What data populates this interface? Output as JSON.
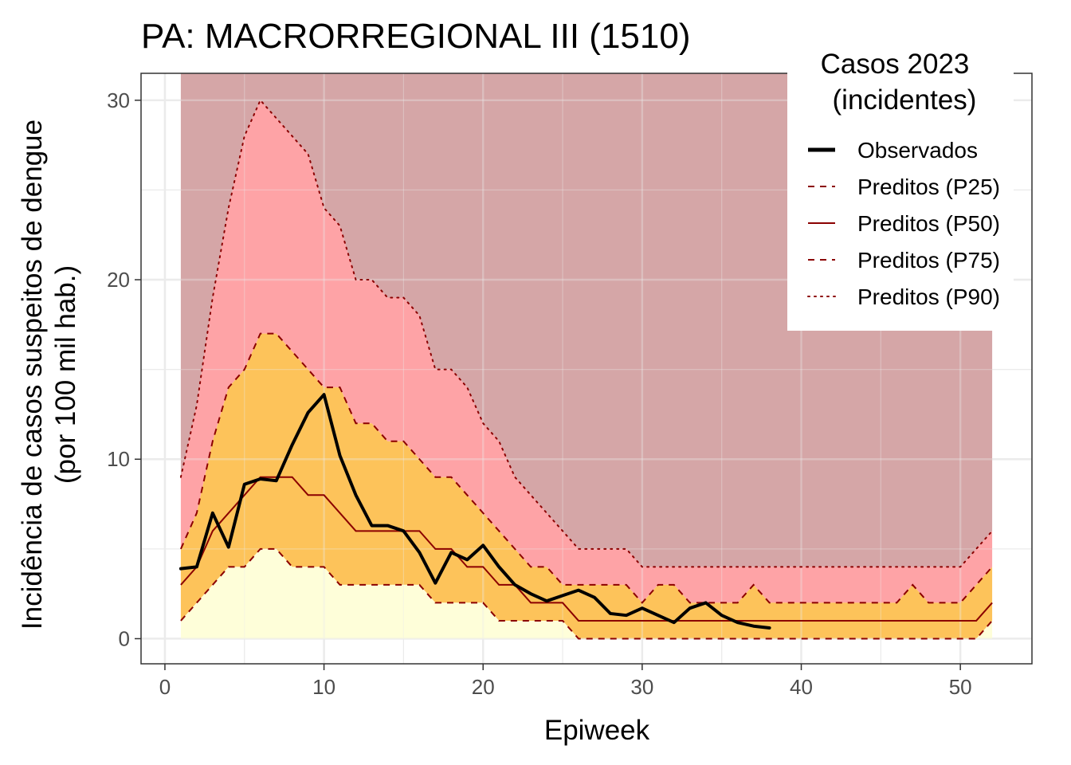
{
  "chart_data": {
    "type": "area",
    "title": "PA: MACRORREGIONAL III (1510)",
    "xlabel": "Epiweek",
    "ylabel_line1": "Incidência de casos suspeitos de dengue",
    "ylabel_line2": "(por 100 mil hab.)",
    "xlim": [
      -1.5,
      54.5
    ],
    "ylim": [
      -1.4,
      31.5
    ],
    "x_ticks": [
      0,
      10,
      20,
      30,
      40,
      50
    ],
    "x_tick_labels": [
      "0",
      "10",
      "20",
      "30",
      "40",
      "50"
    ],
    "y_ticks": [
      0,
      10,
      20,
      30
    ],
    "y_tick_labels": [
      "0",
      "10",
      "20",
      "30"
    ],
    "grid": true,
    "legend_position": "top-right",
    "legend": {
      "title_line1": "Casos 2023",
      "title_line2": "(incidentes)",
      "entries": [
        {
          "label": "Observados",
          "color": "#000000",
          "style": "solid-thick"
        },
        {
          "label": "Preditos (P25)",
          "color": "#8b0000",
          "style": "dashed"
        },
        {
          "label": "Preditos (P50)",
          "color": "#8b0000",
          "style": "solid"
        },
        {
          "label": "Preditos (P75)",
          "color": "#8b0000",
          "style": "dashed"
        },
        {
          "label": "Preditos (P90)",
          "color": "#8b0000",
          "style": "dotted"
        }
      ]
    },
    "colors": {
      "band_top": "#d5a6a7",
      "band_p75_p90": "#fea3a6",
      "band_p25_p75": "#fdc35a",
      "band_low": "#fefed9",
      "quantile_line": "#8b0000",
      "observed": "#000000"
    },
    "weeks": [
      1,
      2,
      3,
      4,
      5,
      6,
      7,
      8,
      9,
      10,
      11,
      12,
      13,
      14,
      15,
      16,
      17,
      18,
      19,
      20,
      21,
      22,
      23,
      24,
      25,
      26,
      27,
      28,
      29,
      30,
      31,
      32,
      33,
      34,
      35,
      36,
      37,
      38,
      39,
      40,
      41,
      42,
      43,
      44,
      45,
      46,
      47,
      48,
      49,
      50,
      51,
      52
    ],
    "series": [
      {
        "name": "Preditos (P25)",
        "values": [
          1,
          2,
          3,
          4,
          4,
          5,
          5,
          4,
          4,
          4,
          3,
          3,
          3,
          3,
          3,
          3,
          2,
          2,
          2,
          2,
          1,
          1,
          1,
          1,
          1,
          0,
          0,
          0,
          0,
          0,
          0,
          0,
          0,
          0,
          0,
          0,
          0,
          0,
          0,
          0,
          0,
          0,
          0,
          0,
          0,
          0,
          0,
          0,
          0,
          0,
          0,
          1
        ]
      },
      {
        "name": "Preditos (P50)",
        "values": [
          3,
          4,
          6,
          7,
          8,
          9,
          9,
          9,
          8,
          8,
          7,
          6,
          6,
          6,
          6,
          6,
          5,
          5,
          4,
          4,
          3,
          3,
          2,
          2,
          2,
          1,
          1,
          1,
          1,
          1,
          1,
          1,
          1,
          1,
          1,
          1,
          1,
          1,
          1,
          1,
          1,
          1,
          1,
          1,
          1,
          1,
          1,
          1,
          1,
          1,
          1,
          2
        ]
      },
      {
        "name": "Preditos (P75)",
        "values": [
          5,
          7,
          11,
          14,
          15,
          17,
          17,
          16,
          15,
          14,
          14,
          12,
          12,
          11,
          11,
          10,
          9,
          9,
          8,
          7,
          6,
          5,
          4,
          4,
          3,
          3,
          3,
          3,
          3,
          2,
          3,
          3,
          2,
          2,
          2,
          2,
          3,
          2,
          2,
          2,
          2,
          2,
          2,
          2,
          2,
          2,
          3,
          2,
          2,
          2,
          3,
          4
        ]
      },
      {
        "name": "Preditos (P90)",
        "values": [
          9,
          13,
          19,
          24,
          28,
          30,
          29,
          28,
          27,
          24,
          23,
          20,
          20,
          19,
          19,
          18,
          15,
          15,
          14,
          12,
          11,
          9,
          8,
          7,
          6,
          5,
          5,
          5,
          5,
          4,
          4,
          4,
          4,
          4,
          4,
          4,
          4,
          4,
          4,
          4,
          4,
          4,
          4,
          4,
          4,
          4,
          4,
          4,
          4,
          4,
          5,
          6
        ]
      },
      {
        "name": "Observados",
        "x": [
          1,
          2,
          3,
          4,
          5,
          6,
          7,
          8,
          9,
          10,
          11,
          12,
          13,
          14,
          15,
          16,
          17,
          18,
          19,
          20,
          21,
          22,
          23,
          24,
          25,
          26,
          27,
          28,
          29,
          30,
          31,
          32,
          33,
          34,
          35,
          36,
          37,
          38
        ],
        "values": [
          3.9,
          4.0,
          7.0,
          5.1,
          8.6,
          8.9,
          8.8,
          10.8,
          12.6,
          13.6,
          10.2,
          8.0,
          6.3,
          6.3,
          6.0,
          4.8,
          3.1,
          4.8,
          4.4,
          5.2,
          4.0,
          3.0,
          2.5,
          2.1,
          2.4,
          2.7,
          2.3,
          1.4,
          1.3,
          1.7,
          1.3,
          0.9,
          1.7,
          2.0,
          1.3,
          0.9,
          0.7,
          0.6
        ]
      }
    ]
  }
}
